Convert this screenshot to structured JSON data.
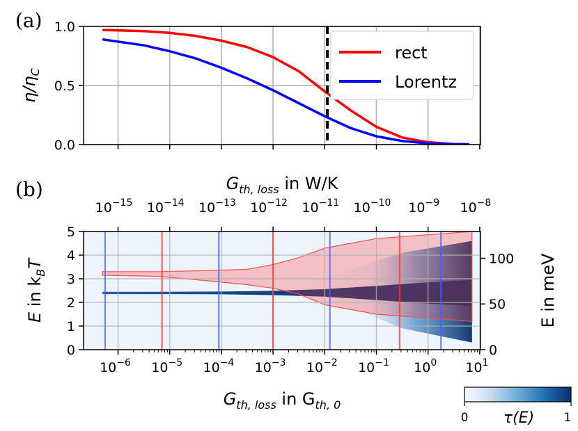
{
  "chart_data": [
    {
      "panel": "(a)",
      "type": "line",
      "ylabel": "η/η_C",
      "ylabel_main": "η/η",
      "ylabel_sub": "C",
      "ylim": [
        0,
        1.0
      ],
      "yticks": [
        0.0,
        0.5,
        1.0
      ],
      "ytick_labels": [
        "0.0",
        "0.5",
        "1.0"
      ],
      "grid": true,
      "x_scale": "log10 (G_th,loss in G_th,0)",
      "x": [
        -6.3,
        -5.5,
        -5,
        -4.5,
        -4,
        -3.5,
        -3,
        -2.5,
        -2,
        -1.5,
        -1,
        -0.5,
        0,
        0.5,
        0.8
      ],
      "series": [
        {
          "name": "rect",
          "color": "#ff0000",
          "values": [
            0.97,
            0.96,
            0.945,
            0.92,
            0.88,
            0.825,
            0.74,
            0.62,
            0.45,
            0.29,
            0.15,
            0.06,
            0.02,
            0.005,
            0.003
          ]
        },
        {
          "name": "Lorentz",
          "color": "#0000ff",
          "values": [
            0.89,
            0.84,
            0.79,
            0.73,
            0.65,
            0.56,
            0.46,
            0.35,
            0.24,
            0.14,
            0.07,
            0.03,
            0.01,
            0.003,
            0.002
          ]
        }
      ],
      "vline_x": -1.95,
      "legend_position": "top-right"
    },
    {
      "panel": "(b)",
      "type": "heatmap",
      "ylabel": "E in k_BT",
      "ylabel_main": "E in k",
      "ylabel_sub": "B",
      "ylabel_tail": "T",
      "ylim": [
        0,
        5
      ],
      "yticks": [
        0,
        1,
        2,
        3,
        4,
        5
      ],
      "ytick_labels": [
        "0",
        "1",
        "2",
        "3",
        "4",
        "5"
      ],
      "y2label": "E in meV",
      "y2ticks": [
        0,
        50,
        100
      ],
      "y2tick_labels": [
        "0",
        "50",
        "100"
      ],
      "xlabel": "G_th,loss in G_th,0",
      "xlabel_main": "G",
      "xlabel_sub": "th, loss",
      "xlabel_mid": " in G",
      "xlabel_sub2": "th, 0",
      "xtick_exponents": [
        -6,
        -5,
        -4,
        -3,
        -2,
        -1,
        0,
        1
      ],
      "x2label": "G_th,loss in W/K",
      "x2label_main": "G",
      "x2label_sub": "th, loss",
      "x2label_tail": " in W/K",
      "x2tick_exponents": [
        -15,
        -14,
        -13,
        -12,
        -11,
        -10,
        -9,
        -8
      ],
      "colorbar": {
        "label": "τ(E)",
        "min_label": "0",
        "max_label": "1",
        "colormap": "Blues"
      },
      "red_boundaries_x": [
        -5.15,
        -3.0,
        -0.55
      ],
      "blue_boundaries_x": [
        -6.25,
        -4.05,
        -1.9,
        0.25
      ],
      "red_region_upper_kBT": [
        3.3,
        3.3,
        3.35,
        3.4,
        3.6,
        3.9,
        4.3,
        4.7,
        5.0
      ],
      "red_region_lower_kBT": [
        3.15,
        3.1,
        2.9,
        2.75,
        2.6,
        2.35,
        1.9,
        1.5,
        1.2
      ]
    }
  ]
}
